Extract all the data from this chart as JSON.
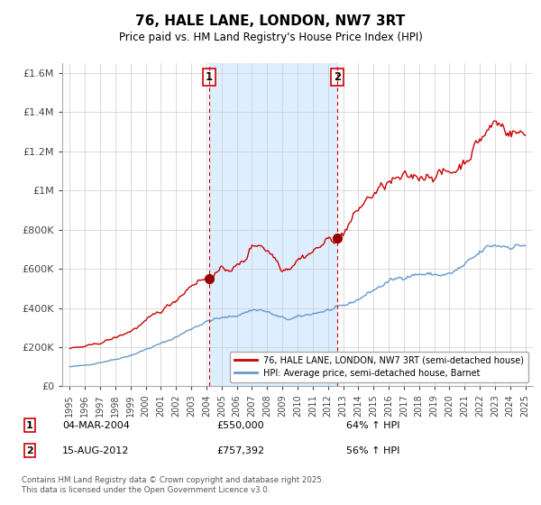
{
  "title": "76, HALE LANE, LONDON, NW7 3RT",
  "subtitle": "Price paid vs. HM Land Registry's House Price Index (HPI)",
  "legend_line1": "76, HALE LANE, LONDON, NW7 3RT (semi-detached house)",
  "legend_line2": "HPI: Average price, semi-detached house, Barnet",
  "footnote": "Contains HM Land Registry data © Crown copyright and database right 2025.\nThis data is licensed under the Open Government Licence v3.0.",
  "sale1_label": "1",
  "sale1_date": "04-MAR-2004",
  "sale1_price": "£550,000",
  "sale1_hpi": "64% ↑ HPI",
  "sale1_year": 2004.17,
  "sale1_value": 550000,
  "sale2_label": "2",
  "sale2_date": "15-AUG-2012",
  "sale2_price": "£757,392",
  "sale2_hpi": "56% ↑ HPI",
  "sale2_year": 2012.62,
  "sale2_value": 757392,
  "red_color": "#cc0000",
  "blue_color": "#6699cc",
  "shade_color": "#ddeeff",
  "ylim": [
    0,
    1650000
  ],
  "yticks": [
    0,
    200000,
    400000,
    600000,
    800000,
    1000000,
    1200000,
    1400000,
    1600000
  ],
  "ytick_labels": [
    "£0",
    "£200K",
    "£400K",
    "£600K",
    "£800K",
    "£1M",
    "£1.2M",
    "£1.4M",
    "£1.6M"
  ],
  "xlim": [
    1994.5,
    2025.5
  ],
  "xticks": [
    1995,
    1996,
    1997,
    1998,
    1999,
    2000,
    2001,
    2002,
    2003,
    2004,
    2005,
    2006,
    2007,
    2008,
    2009,
    2010,
    2011,
    2012,
    2013,
    2014,
    2015,
    2016,
    2017,
    2018,
    2019,
    2020,
    2021,
    2022,
    2023,
    2024,
    2025
  ],
  "hpi_knots_x": [
    1995.0,
    1995.5,
    1996.0,
    1996.5,
    1997.0,
    1997.5,
    1998.0,
    1998.5,
    1999.0,
    1999.5,
    2000.0,
    2000.5,
    2001.0,
    2001.5,
    2002.0,
    2002.5,
    2003.0,
    2003.5,
    2004.0,
    2004.5,
    2005.0,
    2005.5,
    2006.0,
    2006.5,
    2007.0,
    2007.5,
    2008.0,
    2008.5,
    2009.0,
    2009.5,
    2010.0,
    2010.5,
    2011.0,
    2011.5,
    2012.0,
    2012.5,
    2013.0,
    2013.5,
    2014.0,
    2014.5,
    2015.0,
    2015.5,
    2016.0,
    2016.5,
    2017.0,
    2017.5,
    2018.0,
    2018.5,
    2019.0,
    2019.5,
    2020.0,
    2020.5,
    2021.0,
    2021.5,
    2022.0,
    2022.5,
    2023.0,
    2023.5,
    2024.0,
    2024.5,
    2025.0
  ],
  "hpi_knots_y": [
    100000,
    103000,
    108000,
    114000,
    122000,
    130000,
    138000,
    148000,
    158000,
    172000,
    188000,
    203000,
    218000,
    234000,
    252000,
    272000,
    295000,
    313000,
    330000,
    342000,
    348000,
    353000,
    362000,
    376000,
    390000,
    392000,
    380000,
    362000,
    348000,
    342000,
    352000,
    362000,
    372000,
    380000,
    388000,
    396000,
    408000,
    425000,
    445000,
    468000,
    492000,
    512000,
    535000,
    548000,
    560000,
    568000,
    572000,
    572000,
    570000,
    568000,
    572000,
    592000,
    618000,
    648000,
    680000,
    710000,
    720000,
    718000,
    715000,
    718000,
    722000
  ],
  "red_knots_x": [
    1995.0,
    1995.5,
    1996.0,
    1996.5,
    1997.0,
    1997.5,
    1998.0,
    1998.5,
    1999.0,
    1999.5,
    2000.0,
    2000.5,
    2001.0,
    2001.5,
    2002.0,
    2002.5,
    2003.0,
    2003.5,
    2004.17,
    2004.5,
    2005.0,
    2005.5,
    2006.0,
    2006.5,
    2007.0,
    2007.5,
    2008.0,
    2008.5,
    2009.0,
    2009.5,
    2010.0,
    2010.5,
    2011.0,
    2011.5,
    2012.0,
    2012.62,
    2013.0,
    2013.5,
    2014.0,
    2014.5,
    2015.0,
    2015.5,
    2016.0,
    2016.5,
    2017.0,
    2017.5,
    2018.0,
    2018.5,
    2019.0,
    2019.5,
    2020.0,
    2020.5,
    2021.0,
    2021.5,
    2022.0,
    2022.5,
    2023.0,
    2023.5,
    2024.0,
    2024.5,
    2025.0
  ],
  "red_knots_y": [
    193000,
    198000,
    203000,
    210000,
    222000,
    235000,
    248000,
    265000,
    282000,
    305000,
    332000,
    360000,
    385000,
    413000,
    443000,
    478000,
    518000,
    542000,
    550000,
    572000,
    592000,
    600000,
    612000,
    638000,
    718000,
    730000,
    695000,
    660000,
    600000,
    610000,
    648000,
    668000,
    688000,
    715000,
    745000,
    757392,
    780000,
    840000,
    900000,
    950000,
    980000,
    1010000,
    1040000,
    1050000,
    1060000,
    1068000,
    1075000,
    1080000,
    1082000,
    1085000,
    1090000,
    1110000,
    1150000,
    1200000,
    1260000,
    1300000,
    1350000,
    1330000,
    1300000,
    1295000,
    1280000
  ]
}
